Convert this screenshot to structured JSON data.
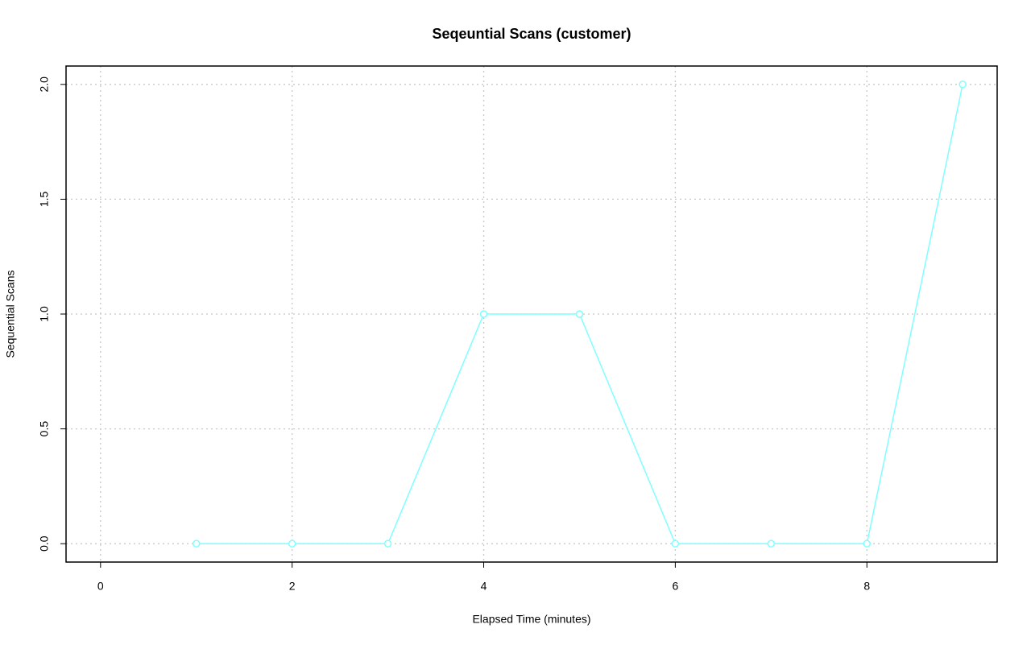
{
  "chart_data": {
    "type": "line",
    "title": "Seqeuntial Scans (customer)",
    "x_label": "Elapsed Time (minutes)",
    "y_label": "Sequential Scans",
    "x": [
      1,
      2,
      3,
      4,
      5,
      6,
      7,
      8,
      9
    ],
    "series": [
      {
        "color": "#7fffff",
        "values": [
          0,
          0,
          0,
          1,
          1,
          0,
          0,
          0,
          2
        ]
      }
    ],
    "xlim": [
      -0.36,
      9.36
    ],
    "xticks": [
      0,
      2,
      4,
      6,
      8
    ],
    "ylim": [
      -0.08,
      2.08
    ],
    "yticks": [
      {
        "value": 0,
        "label": "0.0"
      },
      {
        "value": 0.5,
        "label": "0.5"
      },
      {
        "value": 1,
        "label": "1.0"
      },
      {
        "value": 1.5,
        "label": "1.5"
      },
      {
        "value": 2,
        "label": "2.0"
      }
    ],
    "grid": true
  }
}
